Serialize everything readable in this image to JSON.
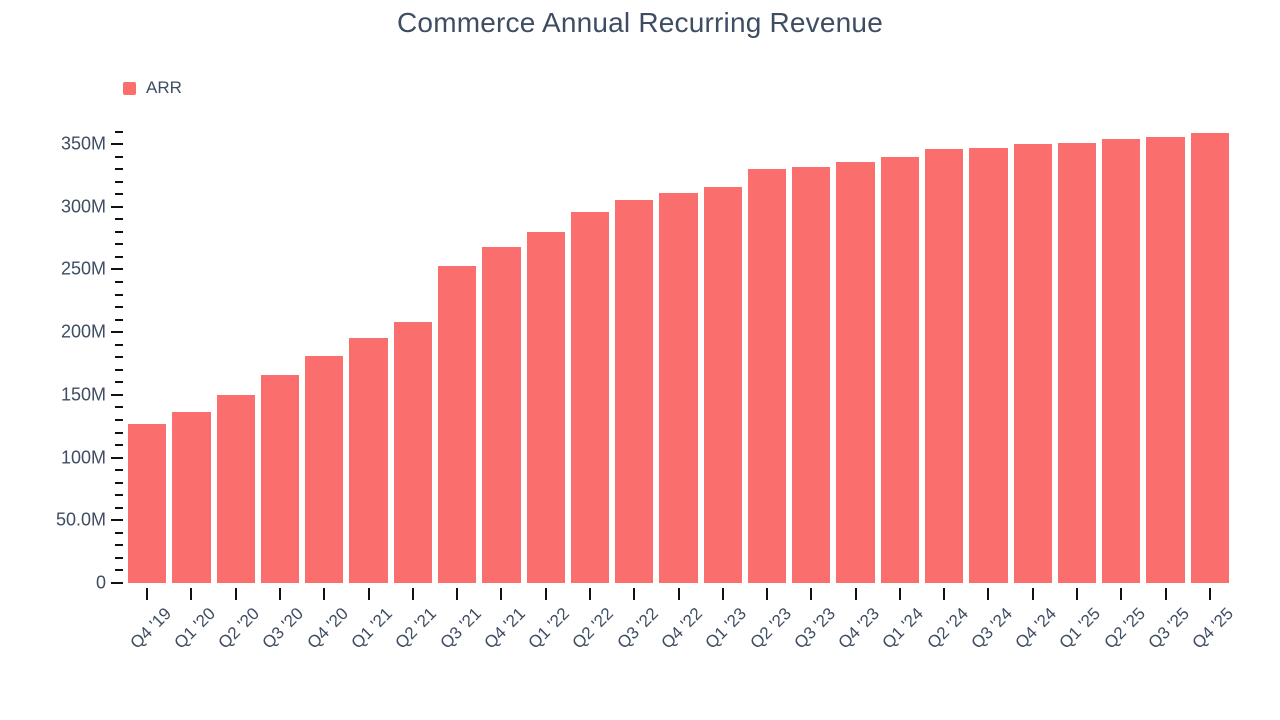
{
  "chart_data": {
    "type": "bar",
    "title": "Commerce Annual Recurring Revenue",
    "legend": {
      "position": "top-left",
      "entries": [
        {
          "label": "ARR"
        }
      ]
    },
    "categories": [
      "Q4 '19",
      "Q1 '20",
      "Q2 '20",
      "Q3 '20",
      "Q4 '20",
      "Q1 '21",
      "Q2 '21",
      "Q3 '21",
      "Q4 '21",
      "Q1 '22",
      "Q2 '22",
      "Q3 '22",
      "Q4 '22",
      "Q1 '23",
      "Q2 '23",
      "Q3 '23",
      "Q4 '23",
      "Q1 '24",
      "Q2 '24",
      "Q3 '24",
      "Q4 '24",
      "Q1 '25",
      "Q2 '25",
      "Q3 '25",
      "Q4 '25"
    ],
    "series": [
      {
        "name": "ARR",
        "unit": "M",
        "values": [
          127,
          136,
          150,
          166,
          181,
          195,
          208,
          253,
          268,
          280,
          296,
          305,
          311,
          316,
          330,
          332,
          336,
          340,
          346,
          347,
          350,
          351,
          354,
          356,
          359
        ]
      }
    ],
    "xlabel": "",
    "ylabel": "",
    "ylim": [
      0,
      360
    ],
    "grid": false,
    "y_axis": {
      "minor_tick_step": 10,
      "major_ticks": [
        {
          "value": 0,
          "label": "0"
        },
        {
          "value": 50,
          "label": "50.0M"
        },
        {
          "value": 100,
          "label": "100M"
        },
        {
          "value": 150,
          "label": "150M"
        },
        {
          "value": 200,
          "label": "200M"
        },
        {
          "value": 250,
          "label": "250M"
        },
        {
          "value": 300,
          "label": "300M"
        },
        {
          "value": 350,
          "label": "350M"
        }
      ]
    },
    "colors": {
      "bar": "#fb6e6e",
      "text": "#3f4d63",
      "tick_mark": "#111111",
      "background": "#ffffff"
    }
  }
}
